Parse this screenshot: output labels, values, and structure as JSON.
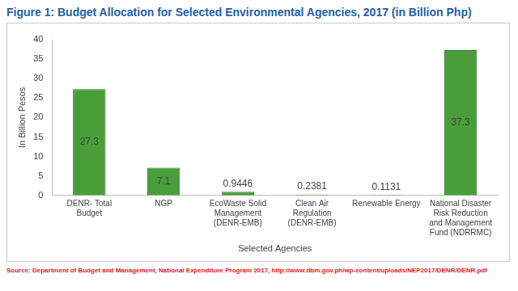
{
  "chart_data": {
    "type": "bar",
    "title": "Figure 1: Budget Allocation for Selected Environmental Agencies, 2017 (in Billion Php)",
    "x_label": "Selected Agencies",
    "y_label": "In Billion Pesos",
    "categories": [
      "DENR- Total Budget",
      "NGP",
      "EcoWaste Solid Management (DENR-EMB)",
      "Clean Air Regulation (DENR-EMB)",
      "Renewable Energy",
      "National Disaster Risk Reduction and Management Fund (NDRRMC)"
    ],
    "values": [
      27.3,
      7.1,
      0.9446,
      0.2381,
      0.1131,
      37.3
    ],
    "color": "#4a9e3a",
    "ylim": [
      0,
      40
    ],
    "yticks": [
      0,
      5,
      10,
      15,
      20,
      25,
      30,
      35,
      40
    ],
    "grid": false,
    "data_labels": true,
    "source": "Source: Department of Budget and Management, National Expenditure Program 2017, http://www.dbm.gov.ph/wp-content/uploads/NEP2017/DENR/DENR.pdf"
  }
}
